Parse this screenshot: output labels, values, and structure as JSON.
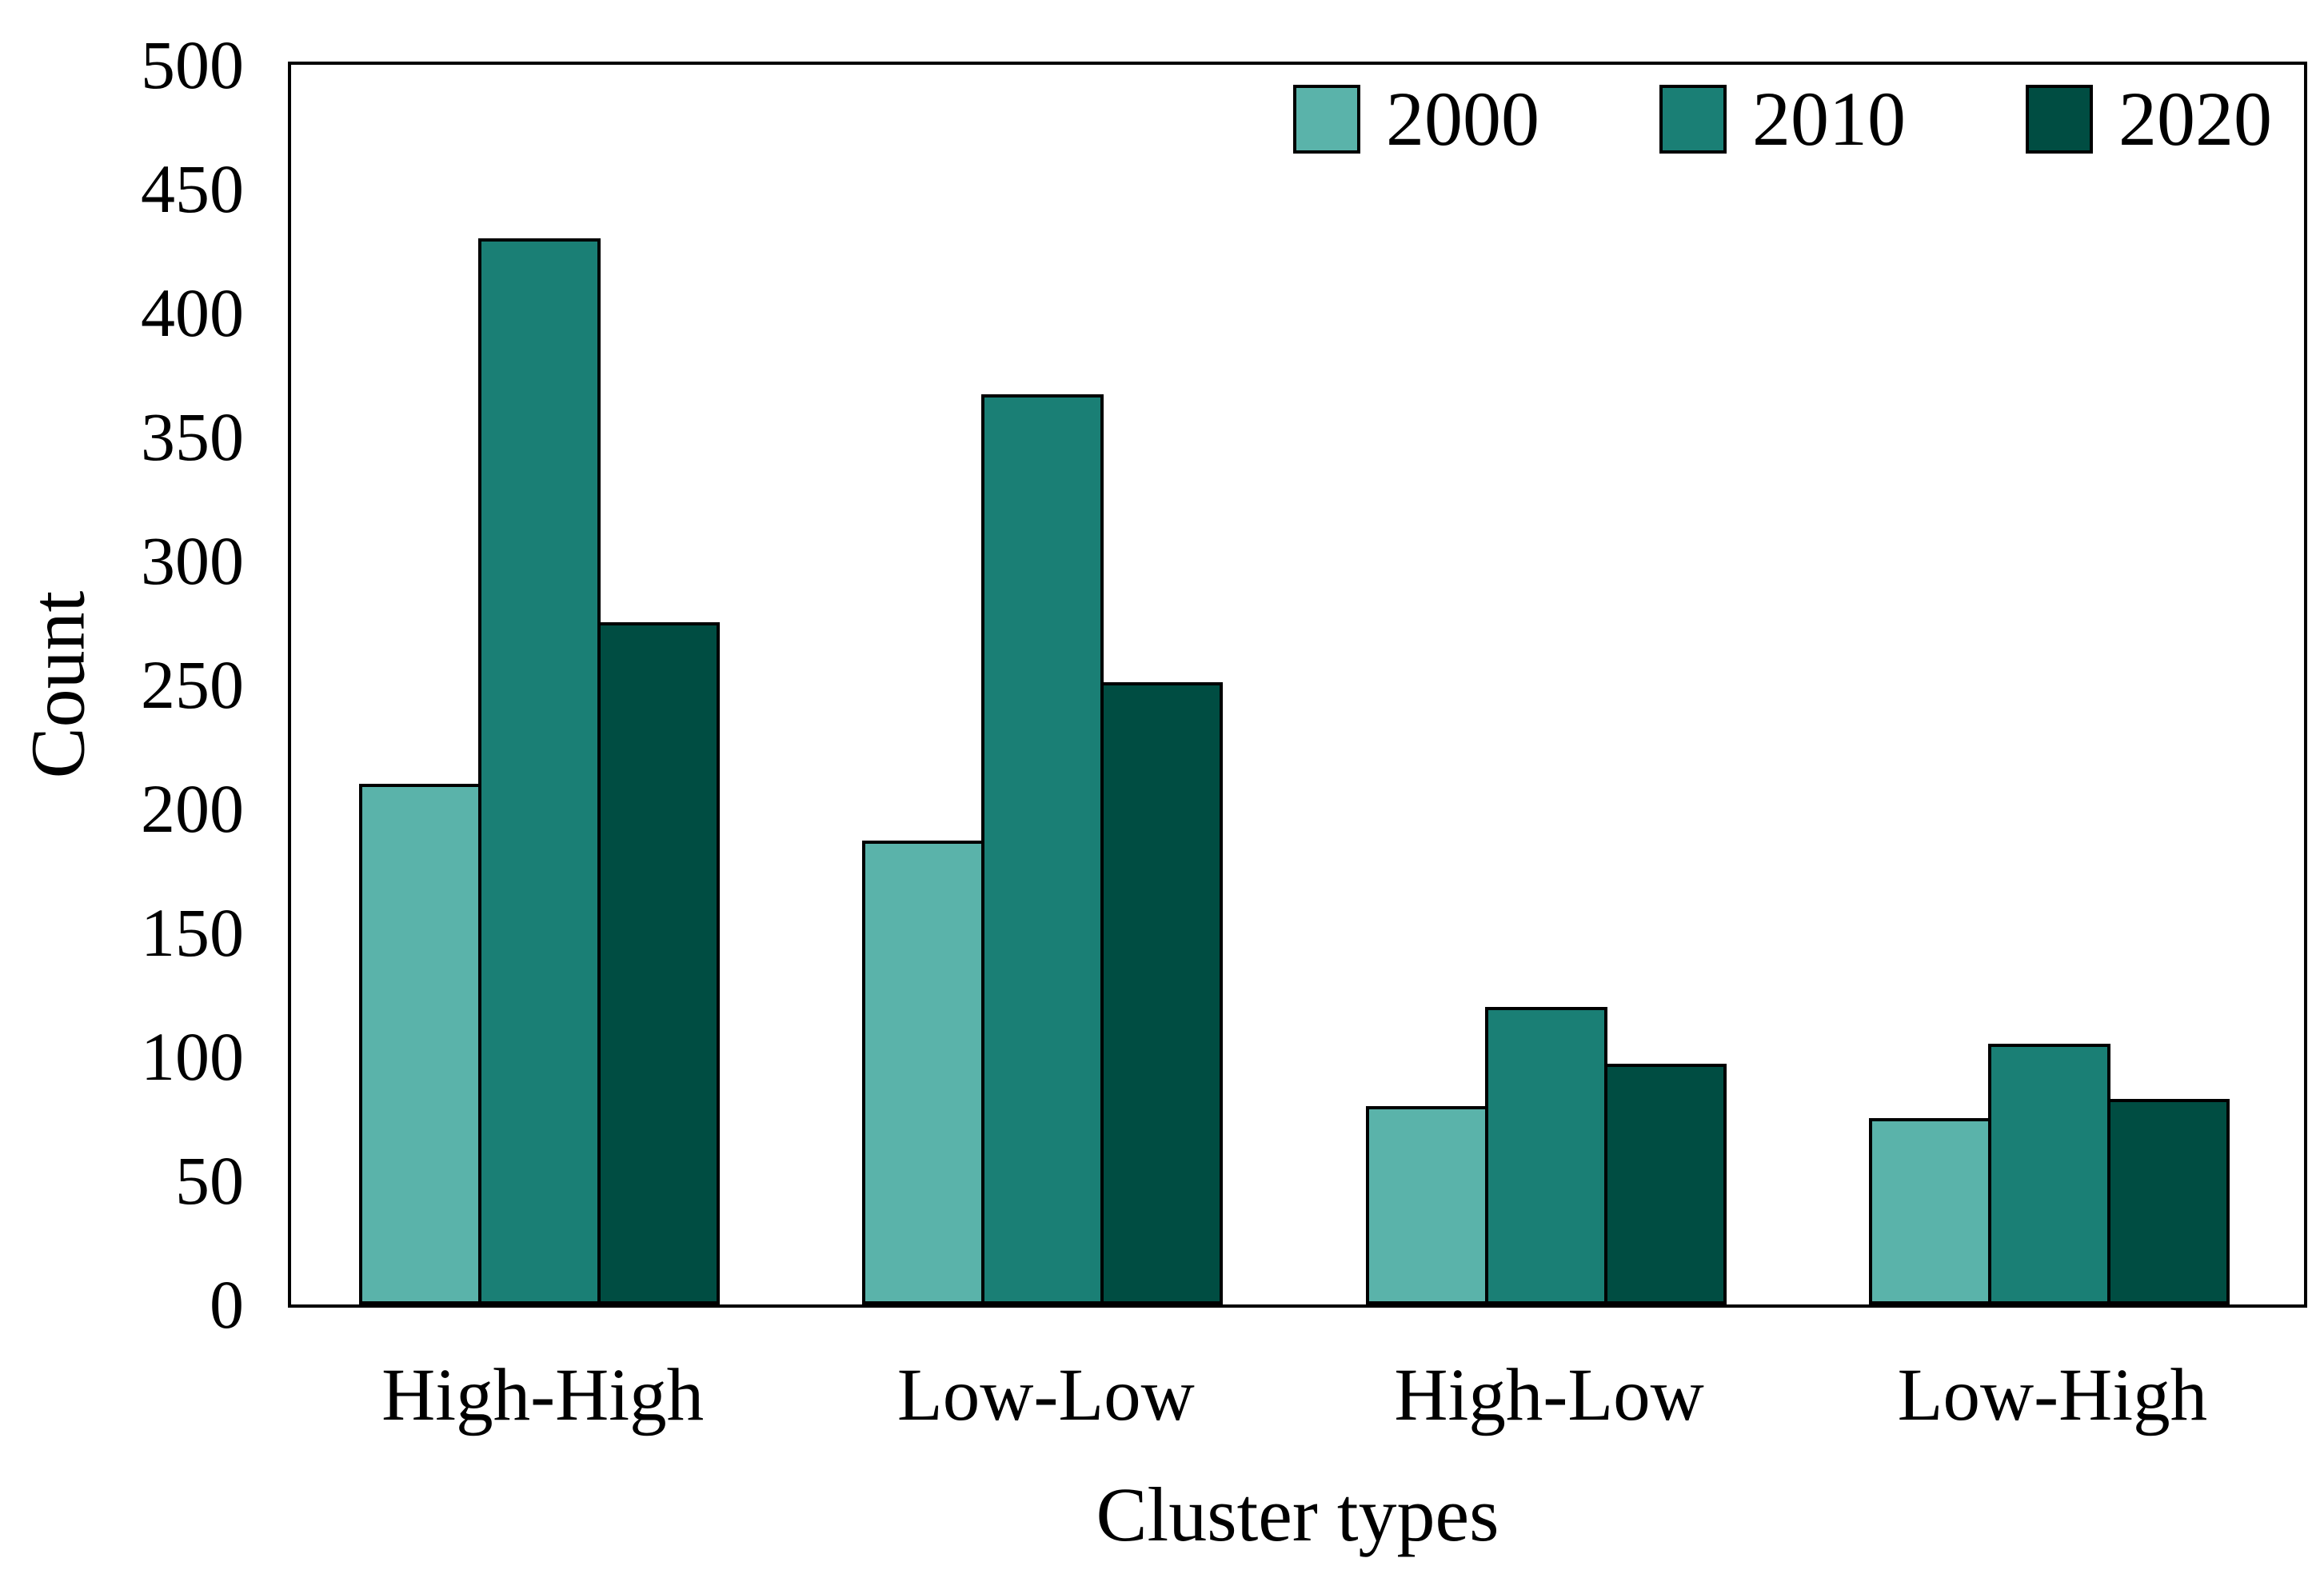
{
  "figure": {
    "background": "#ffffff",
    "frame_color": "#000000"
  },
  "chart_data": {
    "type": "bar",
    "title": "",
    "xlabel": "Cluster types",
    "ylabel": "Count",
    "categories": [
      "High-High",
      "Low-Low",
      "High-Low",
      "Low-High"
    ],
    "series": [
      {
        "name": "2000",
        "color": "#5ab3aa",
        "values": [
          210,
          187,
          80,
          75
        ]
      },
      {
        "name": "2010",
        "color": "#1a7f75",
        "values": [
          430,
          367,
          120,
          105
        ]
      },
      {
        "name": "2020",
        "color": "#004d42",
        "values": [
          275,
          251,
          97,
          83
        ]
      }
    ],
    "ylim": [
      0,
      500
    ],
    "ytick_step": 50,
    "yticks": [
      0,
      50,
      100,
      150,
      200,
      250,
      300,
      350,
      400,
      450,
      500
    ],
    "grid": false,
    "legend_position": "top-right",
    "bar_edge_color": "#000000"
  }
}
